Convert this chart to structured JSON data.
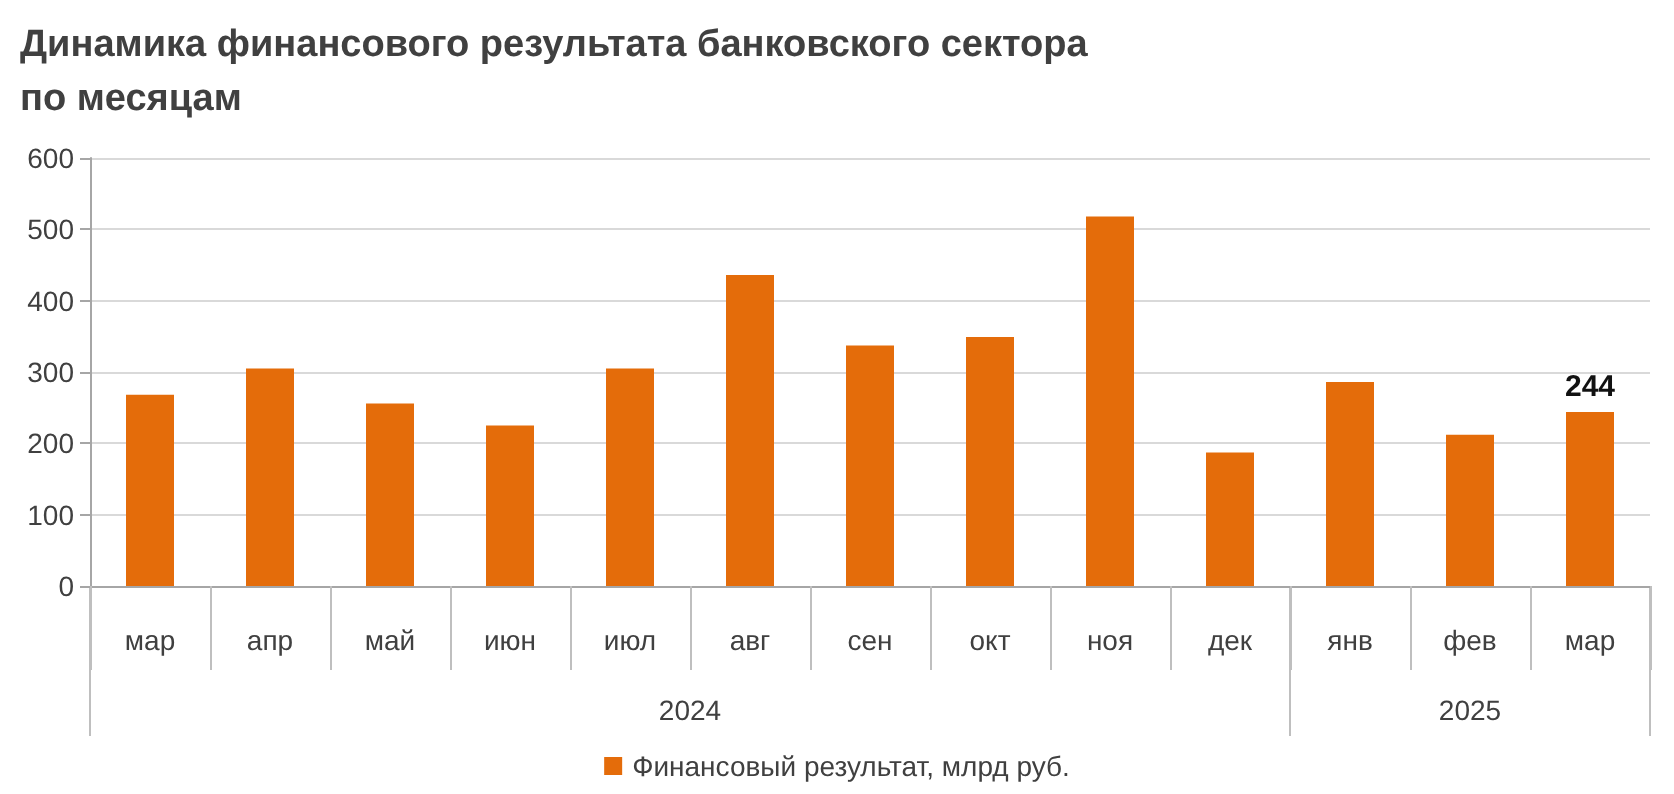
{
  "chart_data": {
    "type": "bar",
    "title": "Динамика финансового результата банковского сектора\nпо месяцам",
    "categories": [
      "мар",
      "апр",
      "май",
      "июн",
      "июл",
      "авг",
      "сен",
      "окт",
      "ноя",
      "дек",
      "янв",
      "фев",
      "мар"
    ],
    "series": [
      {
        "name": "Финансовый результат, млрд руб.",
        "color": "#e46c0a",
        "values": [
          268,
          305,
          256,
          225,
          305,
          436,
          337,
          349,
          518,
          187,
          286,
          212,
          244
        ],
        "value_labels": [
          null,
          null,
          null,
          null,
          null,
          null,
          null,
          null,
          null,
          null,
          null,
          null,
          "244"
        ]
      }
    ],
    "annotations": [
      "2024",
      "2025"
    ],
    "ylim": [
      0,
      600
    ],
    "yticks": [
      0,
      100,
      200,
      300,
      400,
      500,
      600
    ],
    "grid": "y",
    "legend": "bottom"
  }
}
